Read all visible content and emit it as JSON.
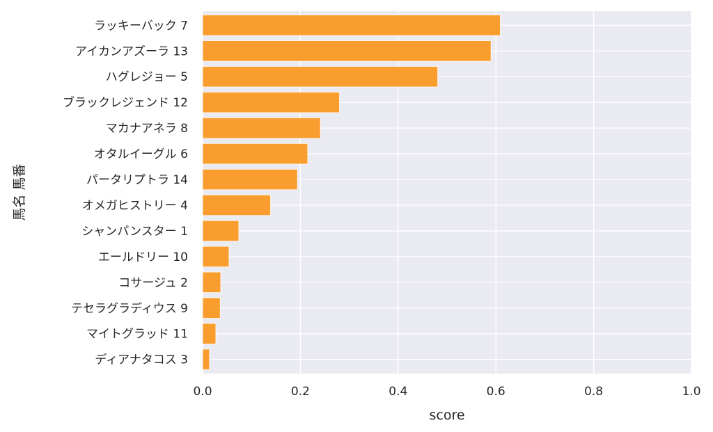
{
  "chart_data": {
    "type": "bar",
    "orientation": "horizontal",
    "categories": [
      "ラッキーバック 7",
      "アイカンアズーラ 13",
      "ハグレジョー 5",
      "ブラックレジェンド 12",
      "マカナアネラ 8",
      "オタルイーグル 6",
      "パータリプトラ 14",
      "オメガヒストリー 4",
      "シャンパンスター 1",
      "エールドリー 10",
      "コサージュ 2",
      "テセラグラディウス 9",
      "マイトグラッド 11",
      "ディアナタコス 3"
    ],
    "values": [
      0.609,
      0.59,
      0.481,
      0.28,
      0.241,
      0.215,
      0.194,
      0.139,
      0.074,
      0.054,
      0.037,
      0.036,
      0.027,
      0.014
    ],
    "xlabel": "score",
    "ylabel": "馬名 馬番",
    "xlim": [
      0.0,
      1.0
    ],
    "x_ticks": [
      "0.0",
      "0.2",
      "0.4",
      "0.6",
      "0.8",
      "1.0"
    ],
    "grid": true,
    "colors": {
      "bar": "#f99d2e",
      "plot_background": "#eaeaf2",
      "grid": "#ffffff"
    }
  }
}
